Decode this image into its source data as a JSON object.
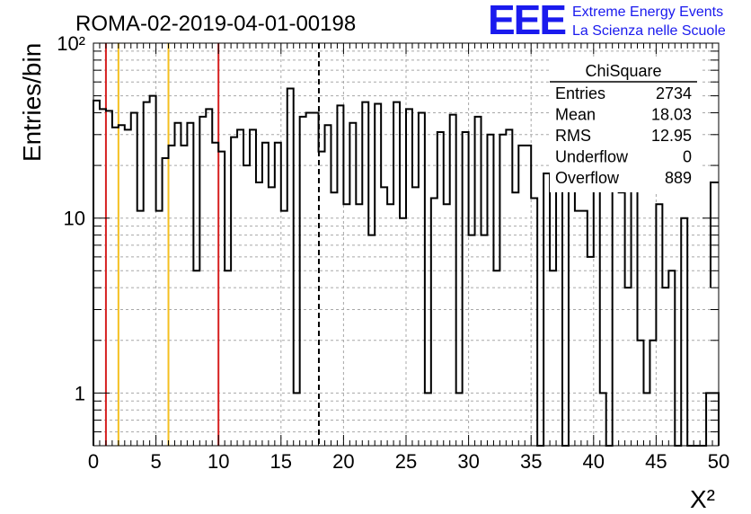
{
  "chart_data": {
    "type": "bar",
    "title": "ROMA-02-2019-04-01-00198",
    "xlabel": "X²",
    "ylabel": "Entries/bin",
    "x_log": false,
    "y_log": true,
    "xlim": [
      0,
      50
    ],
    "ylim": [
      0.5,
      100
    ],
    "grid": true,
    "bin_width": 0.5,
    "x_ticks": [
      "0",
      "5",
      "10",
      "15",
      "20",
      "25",
      "30",
      "35",
      "40",
      "45",
      "50"
    ],
    "y_ticks": [
      {
        "value": 1,
        "label": "1"
      },
      {
        "value": 10,
        "label": "10"
      },
      {
        "value": 100,
        "label": "10²"
      }
    ],
    "values": [
      47,
      42,
      41,
      33,
      34,
      32,
      40,
      11,
      46,
      50,
      11,
      22,
      26,
      35,
      26,
      35,
      5,
      38,
      42,
      27,
      24,
      5,
      29,
      32,
      20,
      32,
      16,
      27,
      15,
      27,
      11,
      55,
      1,
      38,
      40,
      40,
      24,
      34,
      14,
      44,
      12,
      35,
      12,
      46,
      8,
      45,
      15,
      12,
      46,
      10,
      42,
      15,
      40,
      1,
      13,
      31,
      12,
      39,
      1,
      31,
      8,
      38,
      8,
      30,
      5,
      30,
      32,
      14,
      26,
      26,
      13,
      0.001,
      18,
      5,
      22,
      0.001,
      31,
      11,
      11,
      6,
      31,
      1,
      0.001,
      22,
      14,
      4,
      16,
      2,
      1,
      2,
      12,
      4,
      5,
      0.001,
      10,
      0.001,
      0.001,
      0.001,
      1,
      1
    ],
    "overflow_bar": 16,
    "stats_box": {
      "name": "ChiSquare",
      "rows": [
        {
          "label": "Entries",
          "value": "2734"
        },
        {
          "label": "Mean",
          "value": "18.03"
        },
        {
          "label": "RMS",
          "value": "12.95"
        },
        {
          "label": "Underflow",
          "value": "0"
        },
        {
          "label": "Overflow",
          "value": "889"
        }
      ]
    },
    "vertical_lines": [
      {
        "x": 1,
        "color": "#d62020",
        "style": "solid"
      },
      {
        "x": 2,
        "color": "#f5c020",
        "style": "solid"
      },
      {
        "x": 6,
        "color": "#f5c020",
        "style": "solid"
      },
      {
        "x": 10,
        "color": "#d62020",
        "style": "solid"
      },
      {
        "x": 18.03,
        "color": "#000000",
        "style": "dashed"
      }
    ],
    "line_color": "#000000",
    "grid_color": "#a8a8a8"
  },
  "logo": {
    "mark": "EEE",
    "line1": "Extreme Energy Events",
    "line2": "La Scienza nelle Scuole",
    "color": "#1a1aee"
  }
}
